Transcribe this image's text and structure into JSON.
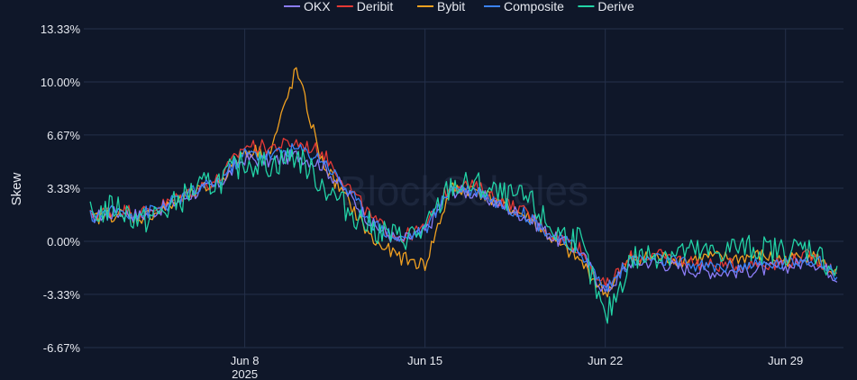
{
  "chart_data": {
    "type": "line",
    "title": "",
    "xlabel": "",
    "ylabel": "Skew",
    "ylim": [
      -6.67,
      13.33
    ],
    "xlim": [
      "2025-06-01T18:00",
      "2025-07-01T06:00"
    ],
    "y_ticks": [
      "13.33%",
      "10.00%",
      "6.67%",
      "3.33%",
      "0.00%",
      "-3.33%",
      "-6.67%"
    ],
    "y_tick_values": [
      13.33,
      10.0,
      6.67,
      3.33,
      0.0,
      -3.33,
      -6.67
    ],
    "x_ticks": [
      {
        "date": "2025-06-08",
        "label": "Jun 8",
        "sublabel": "2025"
      },
      {
        "date": "2025-06-15",
        "label": "Jun 15",
        "sublabel": ""
      },
      {
        "date": "2025-06-22",
        "label": "Jun 22",
        "sublabel": ""
      },
      {
        "date": "2025-06-29",
        "label": "Jun 29",
        "sublabel": ""
      }
    ],
    "legend_position": "top-center",
    "grid": true,
    "watermark": "BlockScholes",
    "x": [
      "2025-06-02",
      "2025-06-03",
      "2025-06-04",
      "2025-06-05",
      "2025-06-06",
      "2025-06-07",
      "2025-06-08",
      "2025-06-09",
      "2025-06-10",
      "2025-06-11",
      "2025-06-12",
      "2025-06-13",
      "2025-06-14",
      "2025-06-15",
      "2025-06-16",
      "2025-06-17",
      "2025-06-18",
      "2025-06-19",
      "2025-06-20",
      "2025-06-21",
      "2025-06-22",
      "2025-06-23",
      "2025-06-24",
      "2025-06-25",
      "2025-06-26",
      "2025-06-27",
      "2025-06-28",
      "2025-06-29",
      "2025-06-30",
      "2025-07-01"
    ],
    "series": [
      {
        "name": "OKX",
        "color": "#8b7cf6",
        "values": [
          1.5,
          1.8,
          1.6,
          2.2,
          3.0,
          3.6,
          5.2,
          5.0,
          5.4,
          4.8,
          3.0,
          1.0,
          0.0,
          0.6,
          3.2,
          3.0,
          2.2,
          1.5,
          0.2,
          -0.6,
          -3.2,
          -1.3,
          -1.3,
          -1.7,
          -1.9,
          -1.9,
          -1.8,
          -1.6,
          -1.2,
          -2.2
        ]
      },
      {
        "name": "Deribit",
        "color": "#e53935",
        "values": [
          1.6,
          2.0,
          1.8,
          2.4,
          3.2,
          3.9,
          6.0,
          5.9,
          6.2,
          5.6,
          3.5,
          1.3,
          0.2,
          0.8,
          3.6,
          3.4,
          2.5,
          1.7,
          0.4,
          -0.4,
          -2.9,
          -1.0,
          -0.9,
          -1.2,
          -1.5,
          -1.5,
          -1.4,
          -1.3,
          -0.9,
          -2.0
        ]
      },
      {
        "name": "Bybit",
        "color": "#f0a020",
        "values": [
          1.4,
          1.7,
          1.5,
          2.1,
          3.0,
          3.7,
          5.7,
          5.6,
          10.8,
          5.0,
          2.5,
          0.0,
          -1.0,
          -1.5,
          3.3,
          3.2,
          2.3,
          1.5,
          0.0,
          -1.2,
          -3.3,
          -1.1,
          -1.0,
          -1.2,
          -1.0,
          -1.1,
          -0.9,
          -1.2,
          -0.8,
          -2.1
        ]
      },
      {
        "name": "Composite",
        "color": "#3b82f6",
        "values": [
          1.5,
          1.9,
          1.7,
          2.3,
          3.1,
          3.8,
          5.5,
          5.4,
          5.8,
          5.2,
          3.2,
          1.1,
          0.1,
          0.7,
          3.4,
          3.2,
          2.3,
          1.6,
          0.3,
          -0.5,
          -3.0,
          -1.2,
          -1.1,
          -1.4,
          -1.6,
          -1.6,
          -1.5,
          -1.4,
          -1.0,
          -2.1
        ]
      },
      {
        "name": "Derive",
        "color": "#22d3a6",
        "values": [
          1.6,
          2.2,
          1.2,
          2.0,
          3.2,
          3.8,
          5.0,
          4.8,
          5.4,
          3.6,
          2.0,
          0.8,
          0.2,
          0.6,
          3.5,
          3.5,
          2.8,
          2.6,
          0.6,
          0.1,
          -5.0,
          -1.1,
          -0.8,
          -0.6,
          -0.8,
          -0.4,
          -0.5,
          -0.6,
          -0.4,
          -2.0
        ]
      }
    ]
  }
}
